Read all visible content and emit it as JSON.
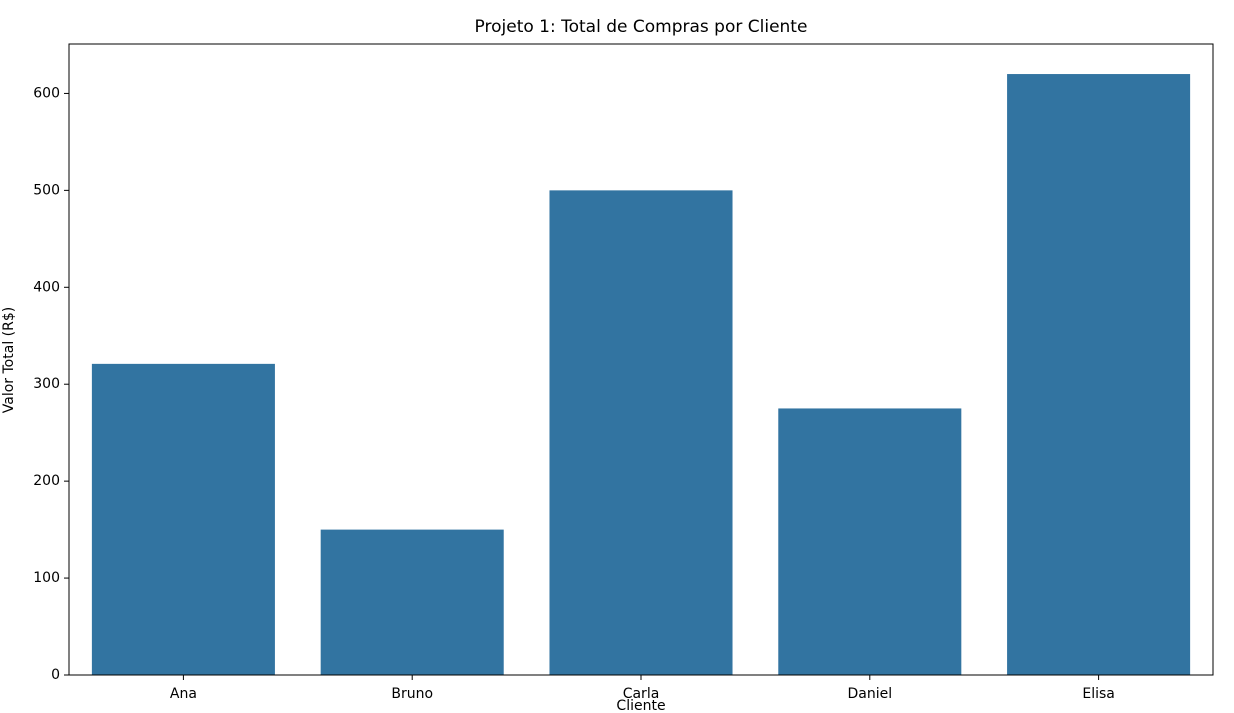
{
  "chart_data": {
    "type": "bar",
    "title": "Projeto 1: Total de Compras por Cliente",
    "x_label": "Cliente",
    "y_label": "Valor Total (R$)",
    "categories": [
      "Ana",
      "Bruno",
      "Carla",
      "Daniel",
      "Elisa"
    ],
    "values": [
      321,
      150,
      500,
      275,
      620
    ],
    "color": "#3274a1",
    "ylim": [
      0,
      651
    ],
    "yticks": [
      0,
      100,
      200,
      300,
      400,
      500,
      600
    ],
    "grid": false
  }
}
